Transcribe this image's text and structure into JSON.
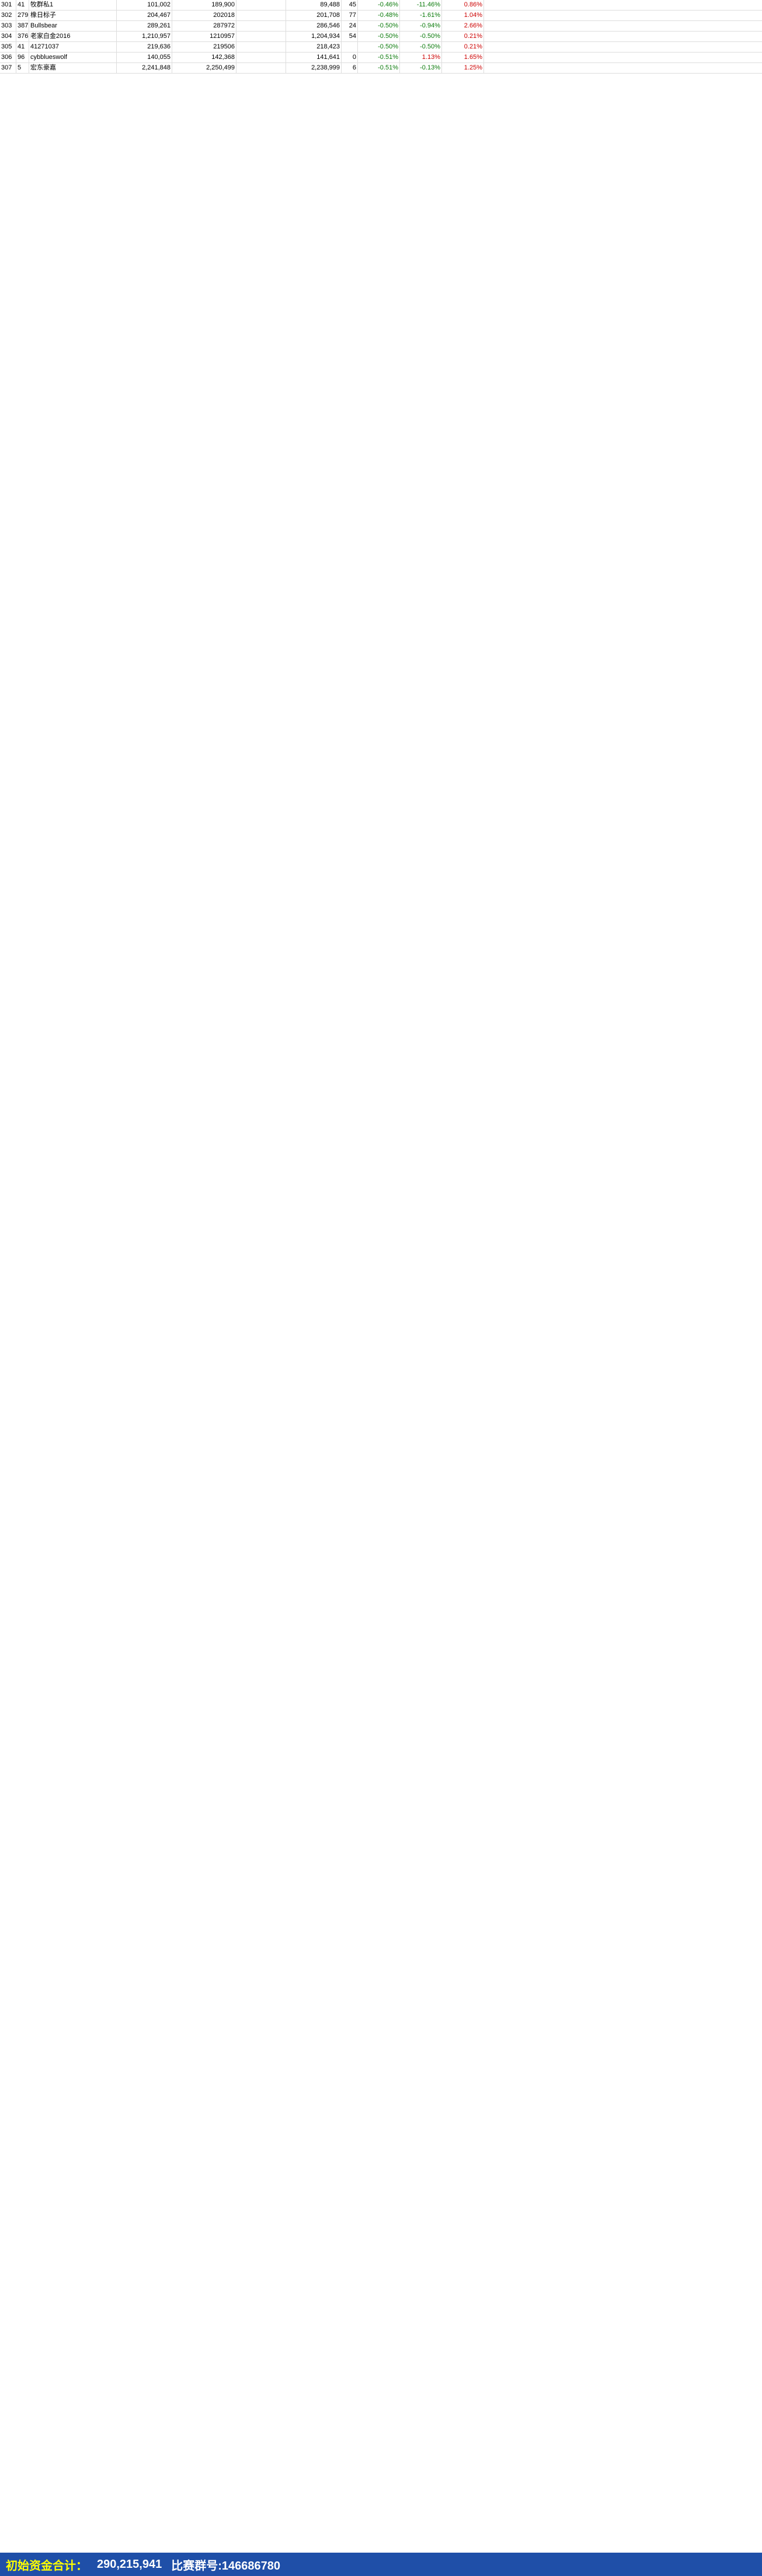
{
  "rows": [
    {
      "rank": "301",
      "id": "41",
      "name": "牧群私1",
      "a": "101,002",
      "b": "189,900",
      "c": "",
      "d": "89,488",
      "e": "45",
      "p1": "-0.46%",
      "p2": "-11.46%",
      "p3": "0.86%"
    },
    {
      "rank": "302",
      "id": "279",
      "name": "橡日标子",
      "a": "204,467",
      "b": "202018",
      "c": "",
      "d": "201,708",
      "e": "77",
      "p1": "-0.48%",
      "p2": "-1.61%",
      "p3": "1.04%"
    },
    {
      "rank": "303",
      "id": "387",
      "name": "Bullsbear",
      "a": "289,261",
      "b": "287972",
      "c": "",
      "d": "286,546",
      "e": "24",
      "p1": "-0.50%",
      "p2": "-0.94%",
      "p3": "2.66%"
    },
    {
      "rank": "304",
      "id": "376",
      "name": "老家白金2016",
      "a": "1,210,957",
      "b": "1210957",
      "c": "",
      "d": "1,204,934",
      "e": "54",
      "p1": "-0.50%",
      "p2": "-0.50%",
      "p3": "0.21%"
    },
    {
      "rank": "305",
      "id": "41",
      "name": "41271037",
      "a": "219,636",
      "b": "219506",
      "c": "",
      "d": "218,423",
      "e": "",
      "p1": "-0.50%",
      "p2": "-0.50%",
      "p3": "0.21%"
    },
    {
      "rank": "306",
      "id": "96",
      "name": "cybblueswolf",
      "a": "140,055",
      "b": "142,368",
      "c": "",
      "d": "141,641",
      "e": "0",
      "p1": "-0.51%",
      "p2": "1.13%",
      "p3": "1.65%"
    },
    {
      "rank": "307",
      "id": "5",
      "name": "宏东豪嘉",
      "a": "2,241,848",
      "b": "2,250,499",
      "c": "",
      "d": "2,238,999",
      "e": "6",
      "p1": "-0.51%",
      "p2": "-0.13%",
      "p3": "1.25%"
    }
  ],
  "footer": {
    "label": "初始资金合计：",
    "total": "290,215,941",
    "group": "比赛群号:146686780"
  }
}
